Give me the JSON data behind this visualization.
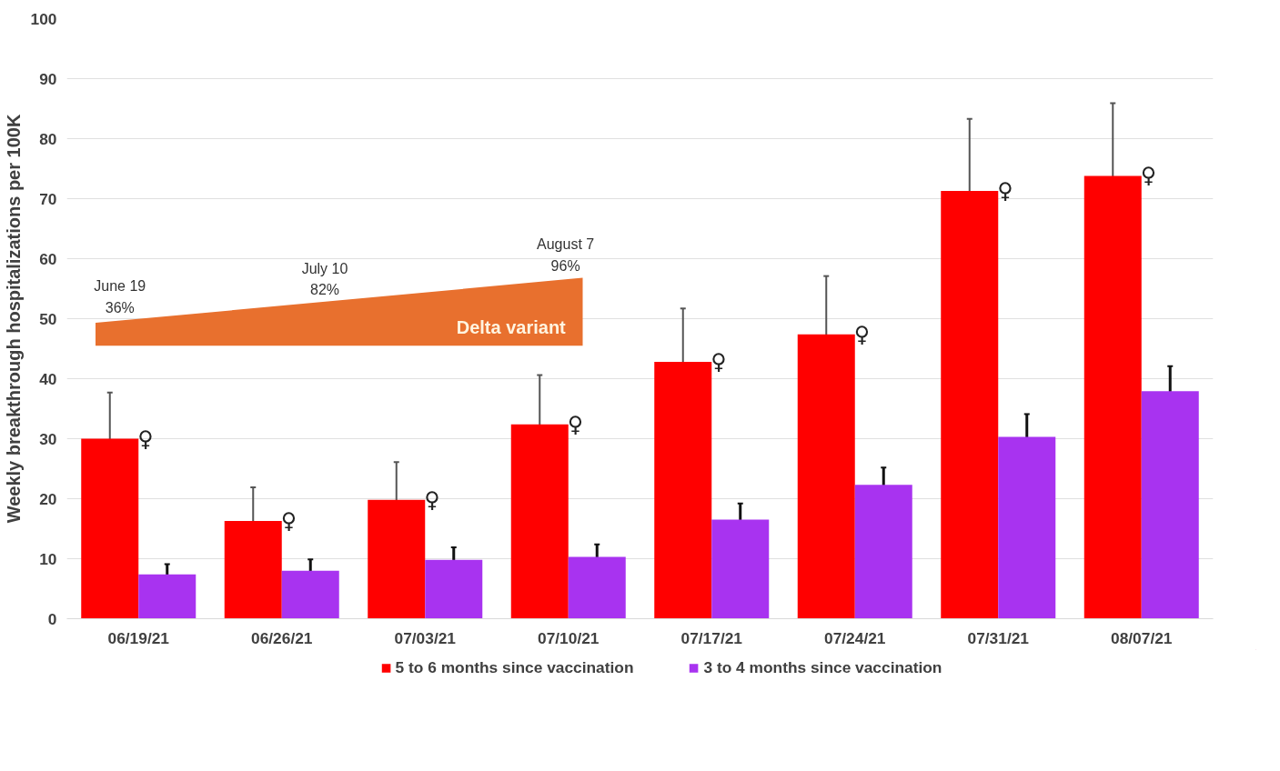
{
  "chart_data": {
    "type": "bar",
    "ylabel": "Weekly breakthrough hospitalizations per 100K",
    "categories": [
      "06/19/21",
      "06/26/21",
      "07/03/21",
      "07/10/21",
      "07/17/21",
      "07/24/21",
      "07/31/21",
      "08/07/21"
    ],
    "series": [
      {
        "name": "5 to 6 months since vaccination",
        "color": "#ff0000",
        "values": [
          30.0,
          16.3,
          19.8,
          32.4,
          42.8,
          47.4,
          71.3,
          73.8
        ],
        "errors": [
          7.7,
          5.6,
          6.3,
          8.2,
          8.9,
          9.7,
          12.0,
          12.1
        ]
      },
      {
        "name": "3 to 4 months since vaccination",
        "color": "#a833f0",
        "values": [
          7.4,
          8.0,
          9.8,
          10.3,
          16.5,
          22.3,
          30.3,
          37.9
        ],
        "errors": [
          1.7,
          1.9,
          2.1,
          2.1,
          2.7,
          2.9,
          3.8,
          4.2
        ]
      }
    ],
    "ylim": [
      0,
      100
    ],
    "yticks": [
      0,
      10,
      20,
      30,
      40,
      50,
      60,
      70,
      80,
      90,
      100
    ],
    "grid": "y",
    "legend": "bottom",
    "annotations": [
      {
        "text": "♀",
        "x": "06/19/21",
        "y": 30.0
      },
      {
        "text": "♀",
        "x": "06/26/21",
        "y": 16.3
      },
      {
        "text": "♀",
        "x": "07/03/21",
        "y": 19.8
      },
      {
        "text": "♀",
        "x": "07/10/21",
        "y": 32.4
      },
      {
        "text": "♀",
        "x": "07/17/21",
        "y": 42.8
      },
      {
        "text": "♀",
        "x": "07/24/21",
        "y": 47.4
      },
      {
        "text": "♀",
        "x": "07/31/21",
        "y": 71.3
      },
      {
        "text": "♀",
        "x": "08/07/21",
        "y": 73.8
      },
      "June 19\n36%",
      "July 10\n82%",
      "August 7\n96%",
      "Delta variant"
    ]
  }
}
